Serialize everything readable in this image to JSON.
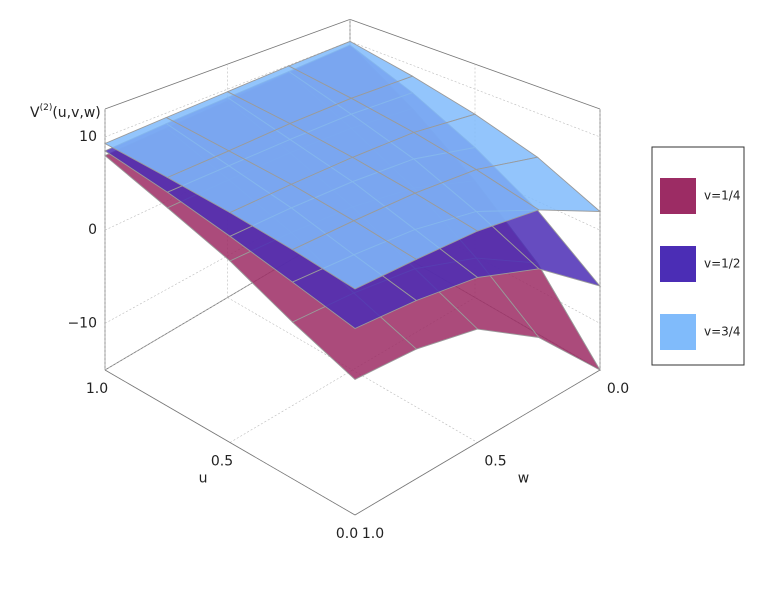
{
  "chart_data": {
    "type": "surface",
    "zlabel": {
      "base": "V",
      "sup": "(2)",
      "args": "(u,v,w)"
    },
    "xlabel": "u",
    "ylabel": "w",
    "u": [
      0,
      0.25,
      0.5,
      0.75,
      1
    ],
    "w": [
      0,
      0.25,
      0.5,
      0.75,
      1
    ],
    "ulim": [
      0,
      1
    ],
    "wlim": [
      0,
      1
    ],
    "zlim": [
      -15,
      13
    ],
    "uticks": [
      {
        "value": 0,
        "label": "0.0"
      },
      0.5,
      {
        "value": 1,
        "label": "1.0"
      }
    ],
    "wticks": [
      {
        "value": 0,
        "label": "0.0"
      },
      0.5,
      {
        "value": 1,
        "label": "1.0"
      }
    ],
    "zticks": [
      {
        "value": -10,
        "label": "−10"
      },
      0,
      10
    ],
    "grid": true,
    "legend": "right",
    "series": [
      {
        "name": "v=1/4",
        "color": "#9c2c64",
        "values": [
          [
            -15,
            -8,
            -4,
            -3,
            -3
          ],
          [
            -7,
            -3,
            -1,
            -0.5,
            -0.5
          ],
          [
            -1,
            1.5,
            2.5,
            2.7,
            2.6
          ],
          [
            4.5,
            5.3,
            5.5,
            5.4,
            5.2
          ],
          [
            9.5,
            9,
            8.6,
            8.3,
            8
          ]
        ]
      },
      {
        "name": "v=1/2",
        "color": "#4b2db5",
        "values": [
          [
            -6,
            -1,
            1,
            1.5,
            1.5
          ],
          [
            -1,
            2,
            3,
            3.2,
            3.2
          ],
          [
            3,
            4.8,
            5.2,
            5.2,
            5
          ],
          [
            6.5,
            7,
            7,
            6.9,
            6.8
          ],
          [
            9.5,
            9.2,
            9,
            8.8,
            8.5
          ]
        ]
      },
      {
        "name": "v=3/4",
        "color": "#80bbfb",
        "values": [
          [
            2,
            5,
            5.5,
            5.3,
            5
          ],
          [
            5,
            6.5,
            6.7,
            6.5,
            6.2
          ],
          [
            7,
            7.8,
            7.8,
            7.6,
            7.3
          ],
          [
            8.6,
            8.9,
            8.8,
            8.5,
            8.3
          ],
          [
            10,
            9.9,
            9.7,
            9.5,
            9.3
          ]
        ]
      }
    ]
  }
}
